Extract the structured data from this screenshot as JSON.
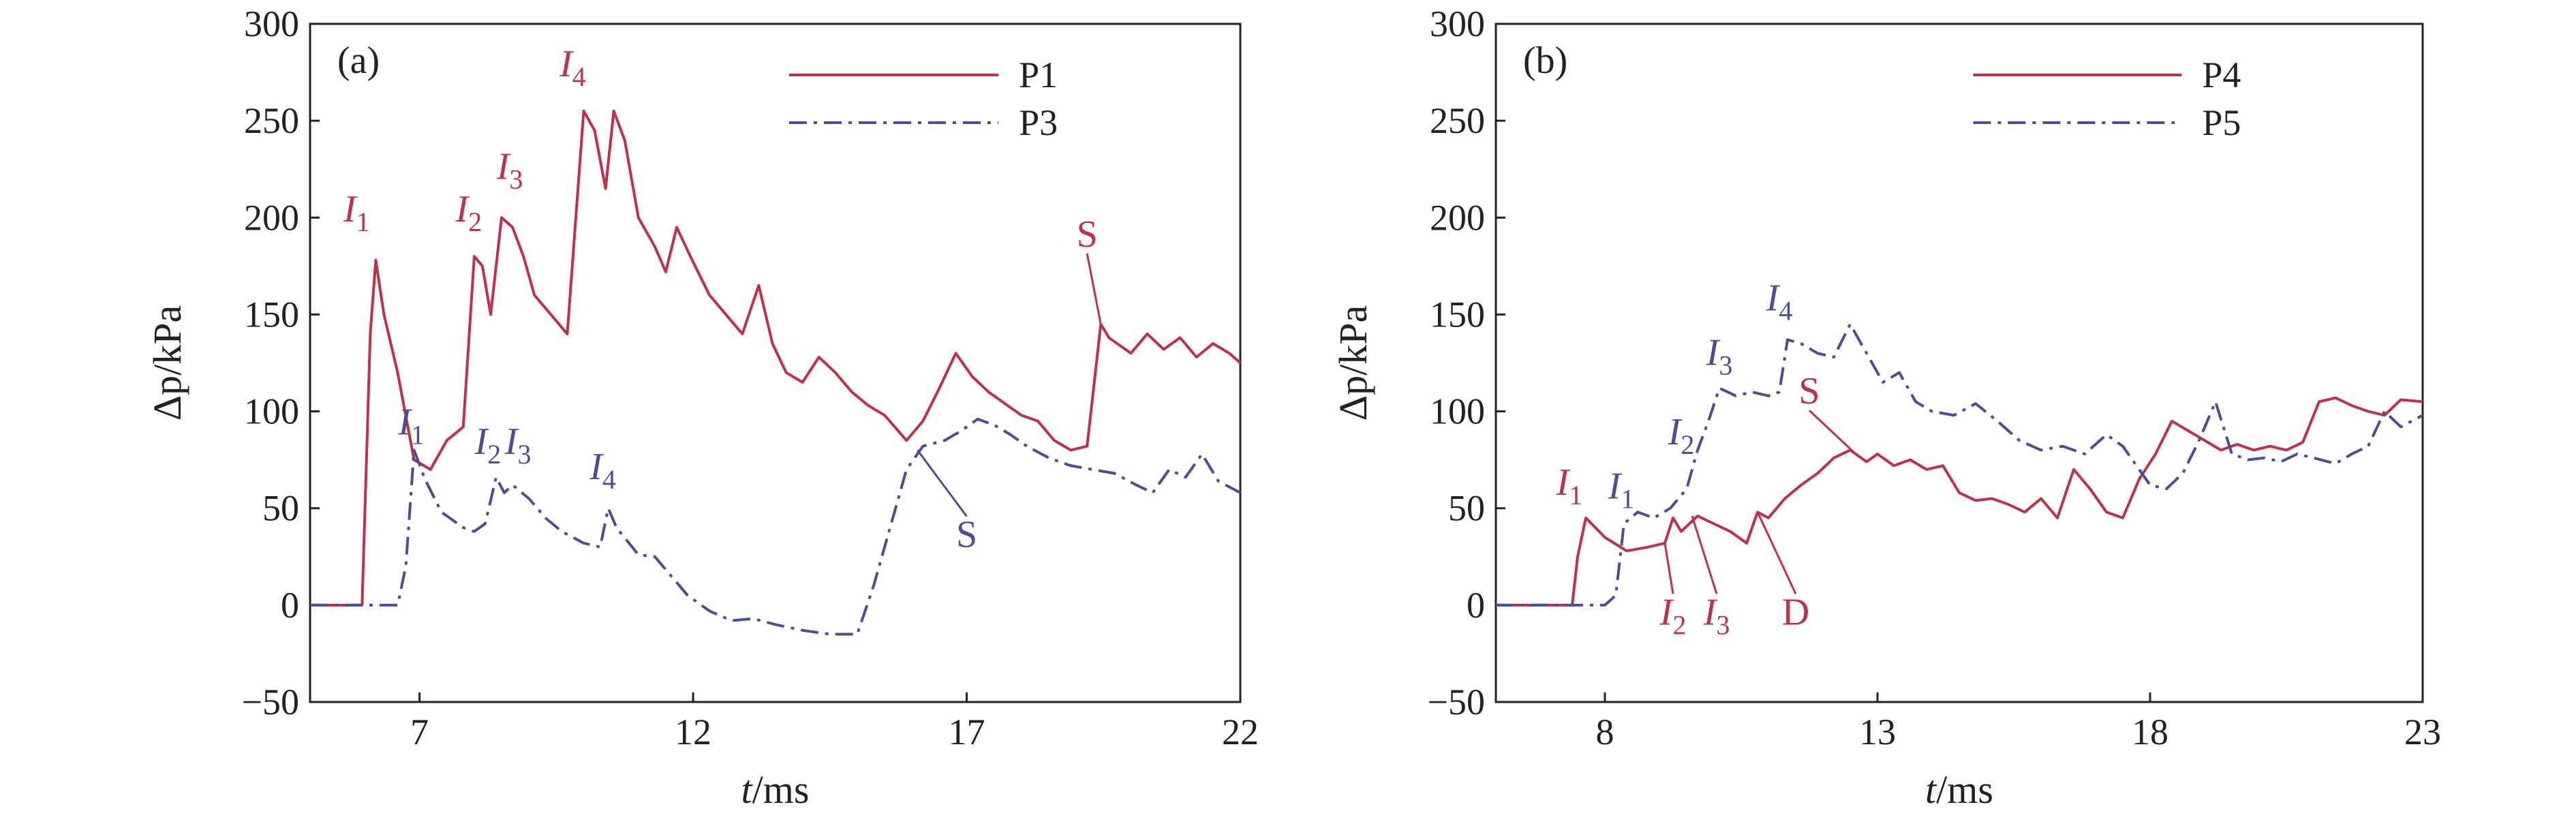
{
  "colors": {
    "red": "#c0304a",
    "blue": "#4a4e96",
    "axis": "#222222"
  },
  "chart_data": [
    {
      "type": "line",
      "panel_label": "(a)",
      "xlabel": {
        "var": "t",
        "unit": "/ms"
      },
      "ylabel": {
        "var": "Δp",
        "unit": "/kPa"
      },
      "xlim": [
        5,
        22
      ],
      "ylim": [
        -50,
        300
      ],
      "xticks": [
        7,
        12,
        17,
        22
      ],
      "yticks": [
        -50,
        0,
        50,
        100,
        150,
        200,
        250,
        300
      ],
      "legend": "top-right",
      "series": [
        {
          "name": "P1",
          "color": "red",
          "dash": "solid",
          "x": [
            5.0,
            5.6,
            5.95,
            6.1,
            6.2,
            6.35,
            6.6,
            6.9,
            7.2,
            7.5,
            7.8,
            8.0,
            8.15,
            8.3,
            8.5,
            8.7,
            8.9,
            9.1,
            9.4,
            9.7,
            10.0,
            10.2,
            10.4,
            10.55,
            10.75,
            11.0,
            11.3,
            11.5,
            11.7,
            11.95,
            12.3,
            12.6,
            12.9,
            13.2,
            13.45,
            13.7,
            14.0,
            14.3,
            14.6,
            14.9,
            15.2,
            15.5,
            15.9,
            16.2,
            16.5,
            16.8,
            17.1,
            17.4,
            17.7,
            18.0,
            18.3,
            18.6,
            18.9,
            19.2,
            19.45,
            19.6,
            19.75,
            20.0,
            20.3,
            20.6,
            20.9,
            21.2,
            21.5,
            21.8,
            22.0
          ],
          "y": [
            0,
            0,
            0,
            140,
            178,
            150,
            120,
            75,
            70,
            85,
            92,
            180,
            175,
            150,
            200,
            195,
            180,
            160,
            150,
            140,
            255,
            245,
            215,
            255,
            240,
            200,
            185,
            172,
            195,
            180,
            160,
            150,
            140,
            165,
            135,
            120,
            115,
            128,
            120,
            110,
            103,
            98,
            85,
            95,
            112,
            130,
            118,
            110,
            104,
            98,
            95,
            85,
            80,
            82,
            145,
            138,
            135,
            130,
            140,
            132,
            138,
            128,
            135,
            130,
            125
          ]
        },
        {
          "name": "P3",
          "color": "blue",
          "dash": "dashdot",
          "x": [
            5.0,
            6.6,
            6.75,
            6.9,
            7.1,
            7.4,
            7.8,
            8.0,
            8.2,
            8.4,
            8.55,
            8.7,
            9.0,
            9.3,
            9.6,
            10.0,
            10.3,
            10.45,
            10.6,
            11.0,
            11.3,
            11.6,
            11.9,
            12.3,
            12.7,
            13.1,
            13.5,
            14.0,
            14.5,
            15.0,
            15.3,
            15.6,
            15.9,
            16.2,
            16.6,
            16.9,
            17.2,
            17.5,
            17.8,
            18.1,
            18.5,
            18.9,
            19.3,
            19.7,
            20.1,
            20.4,
            20.7,
            21.0,
            21.3,
            21.6,
            22.0
          ],
          "y": [
            0,
            0,
            20,
            80,
            65,
            48,
            40,
            38,
            42,
            66,
            58,
            62,
            55,
            45,
            38,
            32,
            30,
            50,
            40,
            26,
            25,
            15,
            5,
            -3,
            -8,
            -7,
            -10,
            -13,
            -15,
            -15,
            10,
            40,
            70,
            82,
            85,
            90,
            96,
            93,
            88,
            82,
            76,
            72,
            70,
            68,
            62,
            58,
            70,
            66,
            78,
            64,
            58
          ]
        }
      ],
      "annotations_red": [
        "I1",
        "I2",
        "I3",
        "I4",
        "S"
      ],
      "annotations_blue": [
        "I1",
        "I2",
        "I3",
        "I4",
        "S"
      ]
    },
    {
      "type": "line",
      "panel_label": "(b)",
      "xlabel": {
        "var": "t",
        "unit": "/ms"
      },
      "ylabel": {
        "var": "Δp",
        "unit": "/kPa"
      },
      "xlim": [
        6,
        23
      ],
      "ylim": [
        -50,
        300
      ],
      "xticks": [
        8,
        13,
        18,
        23
      ],
      "yticks": [
        -50,
        0,
        50,
        100,
        150,
        200,
        250,
        300
      ],
      "legend": "top-right",
      "series": [
        {
          "name": "P4",
          "color": "red",
          "dash": "solid",
          "x": [
            6.0,
            7.4,
            7.5,
            7.65,
            8.0,
            8.4,
            8.8,
            9.1,
            9.25,
            9.4,
            9.7,
            10.0,
            10.3,
            10.6,
            10.8,
            11.0,
            11.3,
            11.6,
            11.9,
            12.2,
            12.5,
            12.8,
            13.0,
            13.3,
            13.6,
            13.9,
            14.2,
            14.5,
            14.8,
            15.1,
            15.4,
            15.7,
            16.0,
            16.3,
            16.6,
            16.9,
            17.2,
            17.5,
            17.8,
            18.1,
            18.4,
            18.7,
            19.0,
            19.3,
            19.6,
            19.9,
            20.2,
            20.5,
            20.8,
            21.1,
            21.4,
            21.7,
            22.0,
            22.3,
            22.6,
            23.0
          ],
          "y": [
            0,
            0,
            25,
            45,
            35,
            28,
            30,
            32,
            45,
            38,
            46,
            42,
            38,
            32,
            48,
            45,
            55,
            62,
            68,
            76,
            80,
            74,
            78,
            72,
            75,
            70,
            72,
            58,
            54,
            55,
            52,
            48,
            55,
            45,
            70,
            60,
            48,
            45,
            65,
            78,
            95,
            90,
            85,
            80,
            83,
            80,
            82,
            80,
            84,
            105,
            107,
            103,
            100,
            98,
            106,
            105
          ]
        },
        {
          "name": "P5",
          "color": "blue",
          "dash": "dashdot",
          "x": [
            6.0,
            8.0,
            8.2,
            8.35,
            8.6,
            8.9,
            9.2,
            9.5,
            9.7,
            9.9,
            10.1,
            10.4,
            10.7,
            11.0,
            11.2,
            11.35,
            11.6,
            11.9,
            12.2,
            12.5,
            12.8,
            13.1,
            13.4,
            13.7,
            14.0,
            14.4,
            14.8,
            15.2,
            15.6,
            16.0,
            16.4,
            16.8,
            17.2,
            17.5,
            17.8,
            18.0,
            18.3,
            18.6,
            18.9,
            19.2,
            19.5,
            19.8,
            20.1,
            20.4,
            20.7,
            21.0,
            21.4,
            21.7,
            22.0,
            22.3,
            22.6,
            23.0
          ],
          "y": [
            0,
            0,
            5,
            42,
            48,
            45,
            50,
            60,
            80,
            95,
            112,
            108,
            110,
            108,
            110,
            137,
            135,
            130,
            128,
            145,
            130,
            115,
            120,
            105,
            100,
            98,
            104,
            95,
            85,
            80,
            82,
            78,
            88,
            82,
            70,
            62,
            60,
            68,
            85,
            105,
            78,
            75,
            76,
            74,
            78,
            76,
            73,
            78,
            82,
            100,
            92,
            98
          ]
        }
      ],
      "annotations_red": [
        "I1",
        "I2",
        "I3",
        "D",
        "S"
      ],
      "annotations_blue": [
        "I1",
        "I2",
        "I3",
        "I4"
      ]
    }
  ]
}
